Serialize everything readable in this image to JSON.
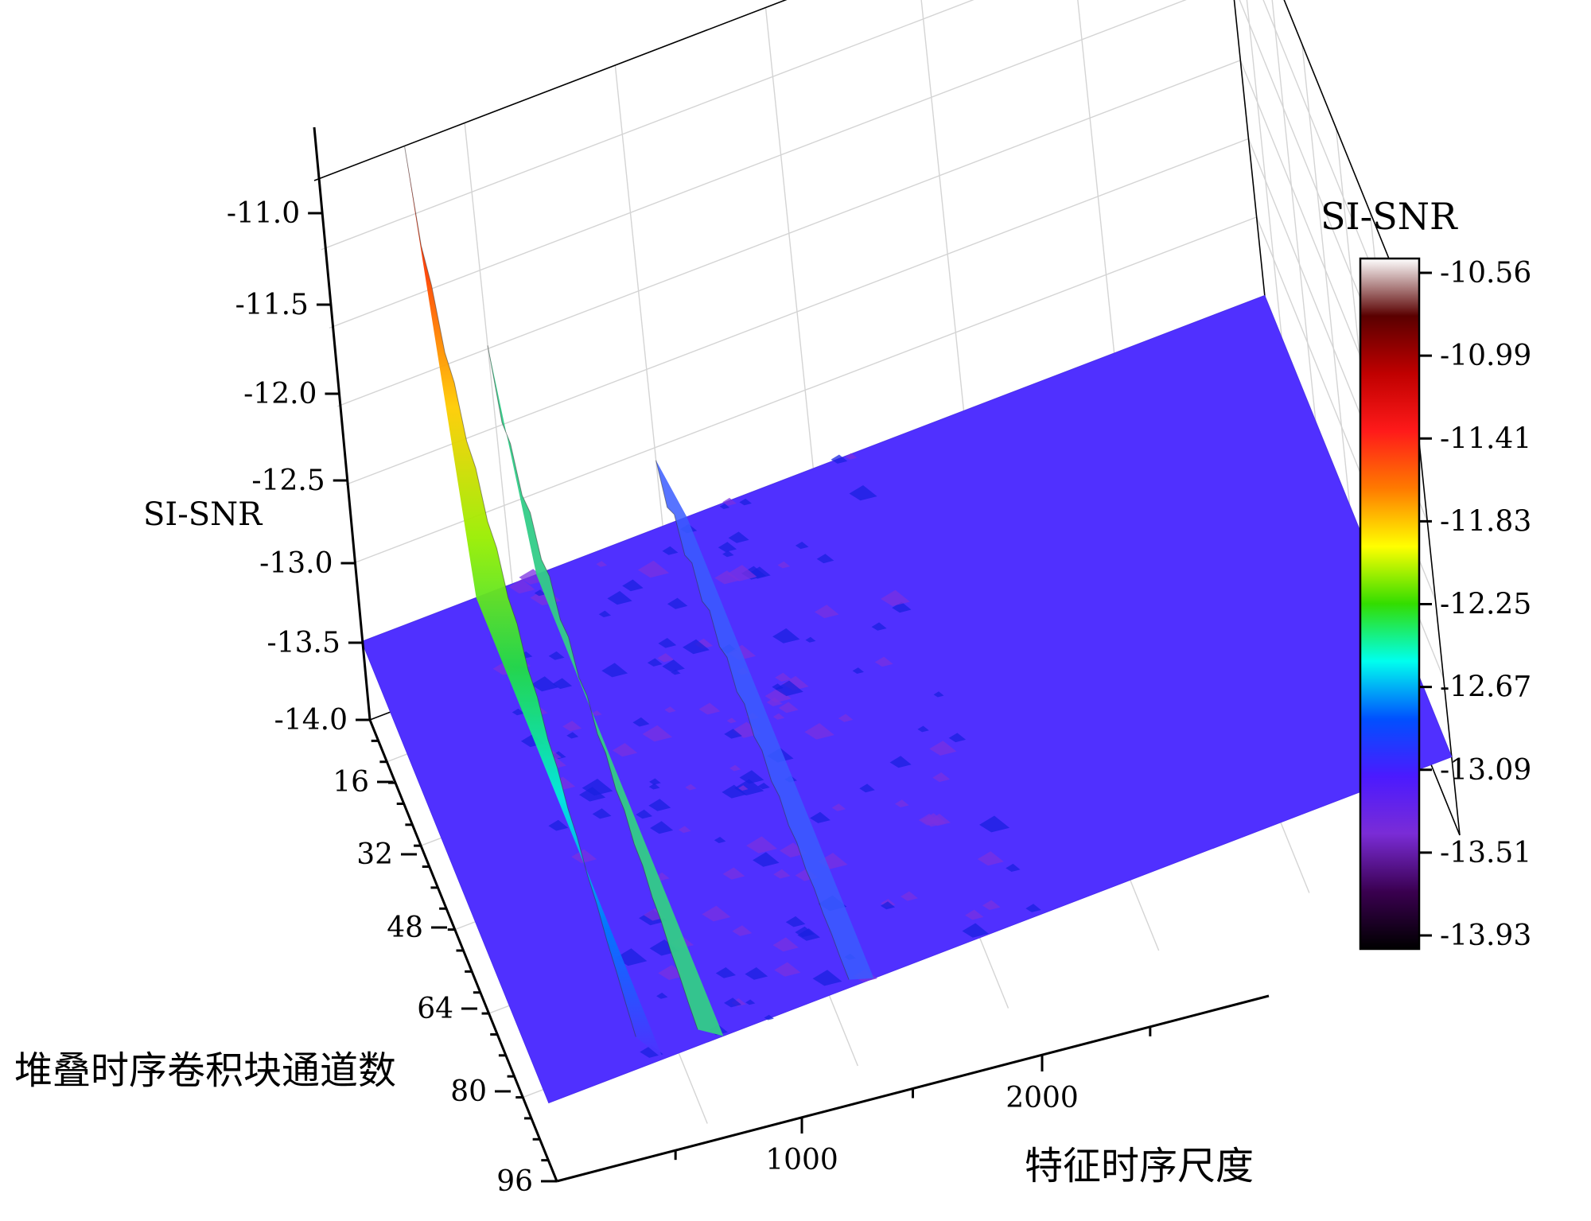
{
  "chart_data": {
    "type": "surface3d",
    "colorbar": {
      "title": "SI-SNR",
      "ticks": [
        "-10.56",
        "-10.99",
        "-11.41",
        "-11.83",
        "-12.25",
        "-12.67",
        "-13.09",
        "-13.51",
        "-13.93"
      ],
      "stops": [
        "#ffffff",
        "#5a0000",
        "#c00000",
        "#ff1a1a",
        "#ff7a00",
        "#ffff00",
        "#33dd00",
        "#00ffee",
        "#0050ff",
        "#4b1aff",
        "#7a2cd6",
        "#3a0050",
        "#000000"
      ]
    },
    "z_axis": {
      "label": "SI-SNR",
      "ticks": [
        "-11.0",
        "-11.5",
        "-12.0",
        "-12.5",
        "-13.0",
        "-13.5",
        "-14.0"
      ],
      "range": [
        -14.0,
        -10.56
      ]
    },
    "y_axis": {
      "label": "堆叠时序卷积块通道数",
      "ticks": [
        "16",
        "32",
        "48",
        "64",
        "80",
        "96"
      ],
      "range": [
        8,
        96
      ]
    },
    "x_axis": {
      "label": "特征时序尺度",
      "ticks": [
        "1000",
        "2000"
      ],
      "range": [
        0,
        3000
      ]
    },
    "surface": {
      "baseline": -13.5,
      "peak_value": -10.56,
      "ridges": [
        {
          "x": 300,
          "peak_at_channels": 8,
          "peak": -10.56,
          "at_channels_96": -13.3
        },
        {
          "x": 500,
          "peak_at_channels": 16,
          "peak": -12.1,
          "at_channels_96": -13.4
        },
        {
          "x": 1000,
          "peak_at_channels": 16,
          "peak": -13.2,
          "at_channels_96": -13.45
        }
      ]
    }
  }
}
